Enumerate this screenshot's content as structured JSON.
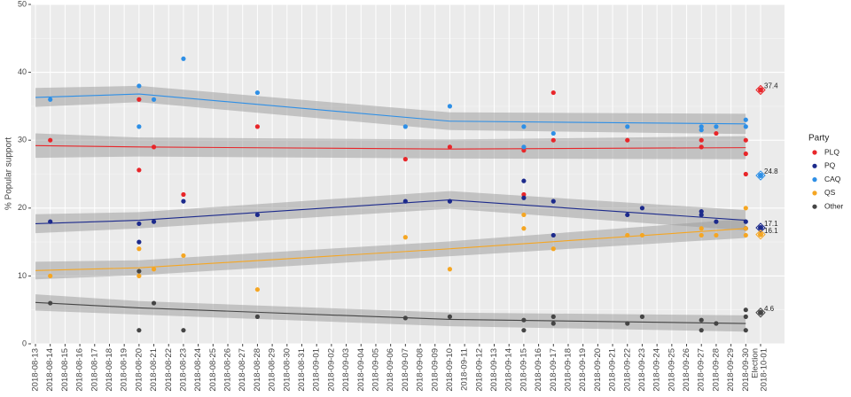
{
  "chart_data": {
    "type": "scatter",
    "y_label": "% Popular support",
    "legend_title": "Party",
    "legend": "right",
    "grid": true,
    "ylim": [
      0,
      50
    ],
    "yticks": [
      0,
      10,
      20,
      30,
      40,
      50
    ],
    "categories": [
      "2018-08-13",
      "2018-08-14",
      "2018-08-15",
      "2018-08-16",
      "2018-08-17",
      "2018-08-18",
      "2018-08-19",
      "2018-08-20",
      "2018-08-21",
      "2018-08-22",
      "2018-08-23",
      "2018-08-24",
      "2018-08-25",
      "2018-08-26",
      "2018-08-27",
      "2018-08-28",
      "2018-08-29",
      "2018-08-30",
      "2018-08-31",
      "2018-09-01",
      "2018-09-02",
      "2018-09-03",
      "2018-09-04",
      "2018-09-05",
      "2018-09-06",
      "2018-09-07",
      "2018-09-08",
      "2018-09-09",
      "2018-09-10",
      "2018-09-11",
      "2018-09-12",
      "2018-09-13",
      "2018-09-14",
      "2018-09-15",
      "2018-09-16",
      "2018-09-17",
      "2018-09-18",
      "2018-09-19",
      "2018-09-20",
      "2018-09-21",
      "2018-09-22",
      "2018-09-23",
      "2018-09-24",
      "2018-09-25",
      "2018-09-26",
      "2018-09-27",
      "2018-09-28",
      "2018-09-29",
      "2018-09-30",
      "2018-10-01"
    ],
    "election_label": "Election",
    "election_date": "2018-10-01",
    "series": [
      {
        "name": "PLQ",
        "color": "#e8262a",
        "x": [
          "2018-08-14",
          "2018-08-20",
          "2018-08-20",
          "2018-08-21",
          "2018-08-23",
          "2018-08-28",
          "2018-09-07",
          "2018-09-10",
          "2018-09-15",
          "2018-09-15",
          "2018-09-17",
          "2018-09-17",
          "2018-09-22",
          "2018-09-27",
          "2018-09-27",
          "2018-09-28",
          "2018-09-30",
          "2018-09-30",
          "2018-09-30"
        ],
        "values": [
          30,
          36,
          25.6,
          29,
          22,
          32,
          27.2,
          29,
          28.5,
          22,
          37,
          30,
          30,
          30,
          29,
          31,
          30,
          28,
          25
        ],
        "trend": {
          "x": [
            "2018-08-13",
            "2018-08-20",
            "2018-09-10",
            "2018-09-30"
          ],
          "values": [
            29.2,
            29.0,
            28.7,
            28.9
          ],
          "lower": [
            27.4,
            27.6,
            27.3,
            27.2
          ],
          "upper": [
            31.0,
            30.4,
            30.1,
            30.6
          ]
        },
        "election": 37.4
      },
      {
        "name": "PQ",
        "color": "#1c2a8c",
        "x": [
          "2018-08-14",
          "2018-08-20",
          "2018-08-20",
          "2018-08-21",
          "2018-08-23",
          "2018-08-28",
          "2018-09-07",
          "2018-09-10",
          "2018-09-15",
          "2018-09-15",
          "2018-09-17",
          "2018-09-17",
          "2018-09-22",
          "2018-09-23",
          "2018-09-27",
          "2018-09-27",
          "2018-09-28",
          "2018-09-30",
          "2018-09-30"
        ],
        "values": [
          18,
          17.7,
          15,
          18,
          21,
          19,
          21,
          21,
          24,
          21.5,
          21,
          16,
          19,
          20,
          19.5,
          19,
          18,
          18,
          17
        ],
        "trend": {
          "x": [
            "2018-08-13",
            "2018-08-20",
            "2018-09-10",
            "2018-09-30"
          ],
          "values": [
            17.7,
            18.2,
            21.2,
            18.2
          ],
          "lower": [
            16.3,
            17.0,
            19.9,
            16.7
          ],
          "upper": [
            19.1,
            19.4,
            22.5,
            19.7
          ]
        },
        "election": 17.1
      },
      {
        "name": "CAQ",
        "color": "#2e8fe6",
        "x": [
          "2018-08-14",
          "2018-08-20",
          "2018-08-20",
          "2018-08-21",
          "2018-08-23",
          "2018-08-28",
          "2018-09-07",
          "2018-09-10",
          "2018-09-15",
          "2018-09-15",
          "2018-09-17",
          "2018-09-22",
          "2018-09-27",
          "2018-09-27",
          "2018-09-28",
          "2018-09-30",
          "2018-09-30"
        ],
        "values": [
          36,
          38,
          32,
          36,
          42,
          37,
          32,
          35,
          32,
          29,
          31,
          32,
          32,
          31.5,
          32,
          33,
          32
        ],
        "trend": {
          "x": [
            "2018-08-13",
            "2018-08-20",
            "2018-09-10",
            "2018-09-30"
          ],
          "values": [
            36.3,
            36.8,
            32.8,
            32.4
          ],
          "lower": [
            34.9,
            35.6,
            31.5,
            30.9
          ],
          "upper": [
            37.7,
            38.0,
            34.1,
            33.9
          ]
        },
        "election": 24.8
      },
      {
        "name": "QS",
        "color": "#f5a623",
        "x": [
          "2018-08-14",
          "2018-08-20",
          "2018-08-20",
          "2018-08-21",
          "2018-08-23",
          "2018-08-28",
          "2018-09-07",
          "2018-09-10",
          "2018-09-15",
          "2018-09-15",
          "2018-09-17",
          "2018-09-22",
          "2018-09-23",
          "2018-09-27",
          "2018-09-27",
          "2018-09-28",
          "2018-09-30",
          "2018-09-30",
          "2018-09-30"
        ],
        "values": [
          10,
          14,
          10,
          11,
          13,
          8,
          15.7,
          11,
          19,
          17,
          14,
          16,
          16,
          17,
          16,
          16,
          20,
          17,
          16
        ],
        "trend": {
          "x": [
            "2018-08-13",
            "2018-08-20",
            "2018-09-10",
            "2018-09-30"
          ],
          "values": [
            10.8,
            11.2,
            14.0,
            17.0
          ],
          "lower": [
            9.5,
            10.1,
            12.9,
            15.6
          ],
          "upper": [
            12.1,
            12.3,
            15.1,
            18.4
          ]
        },
        "election": 16.1
      },
      {
        "name": "Other",
        "color": "#454545",
        "x": [
          "2018-08-14",
          "2018-08-20",
          "2018-08-20",
          "2018-08-21",
          "2018-08-23",
          "2018-08-28",
          "2018-09-07",
          "2018-09-10",
          "2018-09-15",
          "2018-09-15",
          "2018-09-17",
          "2018-09-17",
          "2018-09-22",
          "2018-09-23",
          "2018-09-27",
          "2018-09-27",
          "2018-09-28",
          "2018-09-30",
          "2018-09-30",
          "2018-09-30"
        ],
        "values": [
          6,
          10.7,
          2,
          6,
          2,
          4,
          3.8,
          4,
          3.5,
          2,
          4,
          3,
          3,
          4,
          3.5,
          2,
          3,
          5,
          4,
          2
        ],
        "trend": {
          "x": [
            "2018-08-13",
            "2018-08-20",
            "2018-09-10",
            "2018-09-30"
          ],
          "values": [
            6.1,
            5.3,
            3.6,
            3.0
          ],
          "lower": [
            4.9,
            4.3,
            2.6,
            1.8
          ],
          "upper": [
            7.3,
            6.3,
            4.6,
            4.2
          ]
        },
        "election": 4.6
      }
    ]
  }
}
